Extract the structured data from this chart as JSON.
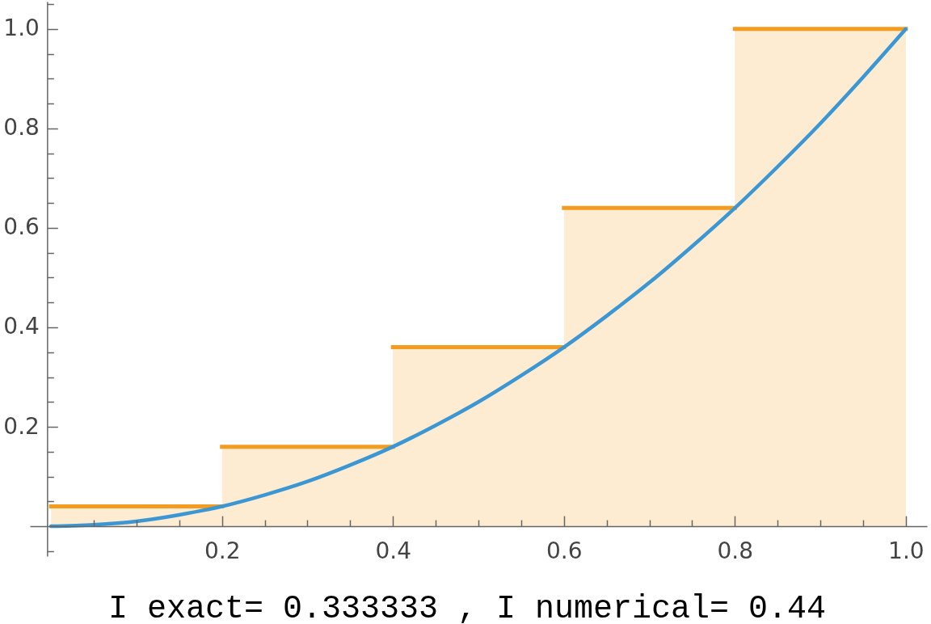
{
  "chart_data": {
    "type": "histogram",
    "bins": [
      0,
      0.2,
      0.4,
      0.6,
      0.8,
      1.0
    ],
    "series": [
      {
        "color": "#f39c1f",
        "values": [
          0.04,
          0.16,
          0.36,
          0.64,
          1.0
        ]
      },
      {
        "type": "line",
        "color": "#3b97d3",
        "x": [
          0,
          0.05,
          0.1,
          0.15,
          0.2,
          0.25,
          0.3,
          0.35,
          0.4,
          0.45,
          0.5,
          0.55,
          0.6,
          0.65,
          0.7,
          0.75,
          0.8,
          0.85,
          0.9,
          0.95,
          1.0
        ],
        "values": [
          0,
          0.003,
          0.01,
          0.023,
          0.04,
          0.063,
          0.09,
          0.123,
          0.16,
          0.203,
          0.25,
          0.303,
          0.36,
          0.423,
          0.49,
          0.563,
          0.64,
          0.723,
          0.81,
          0.903,
          1.0
        ]
      }
    ],
    "xlim": [
      -0.02,
      1.02
    ],
    "ylim": [
      -0.06,
      1.055
    ],
    "xticks": [
      {
        "value": 0.05,
        "label": null
      },
      {
        "value": 0.1,
        "label": null
      },
      {
        "value": 0.15,
        "label": null
      },
      0.2,
      {
        "value": 0.25,
        "label": null
      },
      {
        "value": 0.3,
        "label": null
      },
      {
        "value": 0.35,
        "label": null
      },
      0.4,
      {
        "value": 0.45,
        "label": null
      },
      {
        "value": 0.5,
        "label": null
      },
      {
        "value": 0.55,
        "label": null
      },
      0.6,
      {
        "value": 0.65,
        "label": null
      },
      {
        "value": 0.7,
        "label": null
      },
      {
        "value": 0.75,
        "label": null
      },
      0.8,
      {
        "value": 0.85,
        "label": null
      },
      {
        "value": 0.9,
        "label": null
      },
      {
        "value": 0.95,
        "label": null
      },
      {
        "value": 1.0,
        "label": "1.0"
      }
    ],
    "yticks": [
      {
        "value": -0.05,
        "label": null
      },
      {
        "value": 0.05,
        "label": null
      },
      {
        "value": 0.1,
        "label": null
      },
      {
        "value": 0.15,
        "label": null
      },
      0.2,
      {
        "value": 0.25,
        "label": null
      },
      {
        "value": 0.3,
        "label": null
      },
      {
        "value": 0.35,
        "label": null
      },
      0.4,
      {
        "value": 0.45,
        "label": null
      },
      {
        "value": 0.5,
        "label": null
      },
      {
        "value": 0.55,
        "label": null
      },
      0.6,
      {
        "value": 0.65,
        "label": null
      },
      {
        "value": 0.7,
        "label": null
      },
      {
        "value": 0.75,
        "label": null
      },
      0.8,
      {
        "value": 0.85,
        "label": null
      },
      {
        "value": 0.9,
        "label": null
      },
      {
        "value": 0.95,
        "label": null
      },
      {
        "value": 1.0,
        "label": "1.0"
      },
      {
        "value": 1.05,
        "label": null
      }
    ],
    "annotations": [
      "I exact= 0.333333 , I numerical= 0.44"
    ]
  }
}
